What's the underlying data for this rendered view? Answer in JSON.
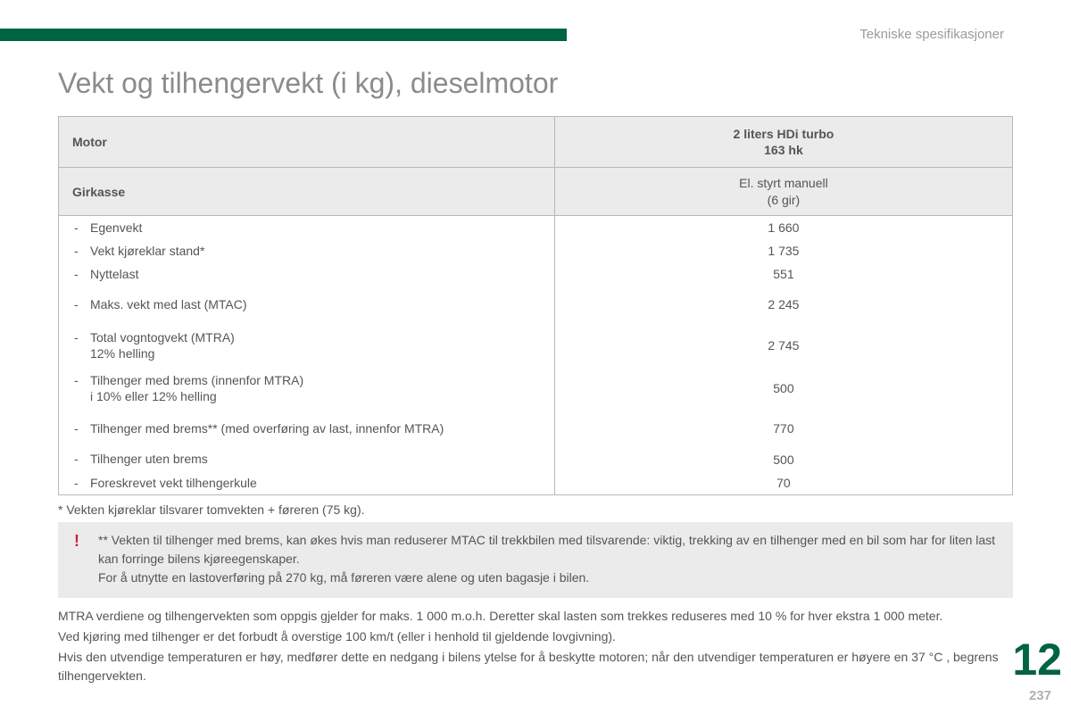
{
  "colors": {
    "brand_green": "#006341",
    "text_gray": "#555555",
    "light_gray_bg": "#ebebeb",
    "border_gray": "#b8b8b8",
    "label_gray": "#9b9b9b",
    "warning_red": "#c82333"
  },
  "section_label": "Tekniske spesifikasjoner",
  "title": "Vekt og tilhengervekt (i kg), dieselmotor",
  "table": {
    "header_left": "Motor",
    "header_right_line1": "2 liters HDi turbo",
    "header_right_line2": "163 hk",
    "subheader_left": "Girkasse",
    "subheader_right_line1": "El. styrt manuell",
    "subheader_right_line2": "(6 gir)",
    "col_widths": [
      "52%",
      "48%"
    ],
    "rows": [
      {
        "label": "Egenvekt",
        "sub": null,
        "value": "1 660",
        "style": "compact"
      },
      {
        "label": "Vekt kjøreklar stand*",
        "sub": null,
        "value": "1 735",
        "style": "compact"
      },
      {
        "label": "Nyttelast",
        "sub": null,
        "value": "551",
        "style": "compact"
      },
      {
        "label": "Maks. vekt med last (MTAC)",
        "sub": null,
        "value": "2 245",
        "style": "tall"
      },
      {
        "label": "Total vogntogvekt (MTRA)",
        "sub": "12% helling",
        "value": "2 745",
        "style": "normal"
      },
      {
        "label": "Tilhenger med brems (innenfor MTRA)",
        "sub": "i 10% eller 12% helling",
        "value": "500",
        "style": "normal"
      },
      {
        "label": "Tilhenger med brems** (med overføring av last, innenfor MTRA)",
        "sub": null,
        "value": "770",
        "style": "tall"
      },
      {
        "label": "Tilhenger uten brems",
        "sub": null,
        "value": "500",
        "style": "compact"
      },
      {
        "label": "Foreskrevet vekt tilhengerkule",
        "sub": null,
        "value": "70",
        "style": "compact"
      }
    ]
  },
  "footnote1": "* Vekten kjøreklar tilsvarer tomvekten + føreren (75 kg).",
  "warning": {
    "line1": "** Vekten til tilhenger med brems, kan økes hvis man reduserer MTAC til trekkbilen med tilsvarende: viktig, trekking av en tilhenger med en bil som har for liten last kan forringe bilens kjøreegenskaper.",
    "line2": "For å utnytte en lastoverføring på 270 kg, må føreren være alene og uten bagasje i bilen."
  },
  "notes": {
    "p1": "MTRA verdiene og tilhengervekten som oppgis gjelder for maks. 1 000 m.o.h. Deretter skal lasten som trekkes reduseres med 10 % for hver ekstra 1 000 meter.",
    "p2": "Ved kjøring med tilhenger er det forbudt å overstige 100 km/t (eller i henhold til gjeldende lovgivning).",
    "p3": "Hvis den utvendige temperaturen er høy, medfører dette en nedgang i bilens ytelse for å beskytte motoren; når den utvendiger temperaturen er høyere en 37 °C , begrens tilhengervekten."
  },
  "chapter_number": "12",
  "page_number": "237"
}
